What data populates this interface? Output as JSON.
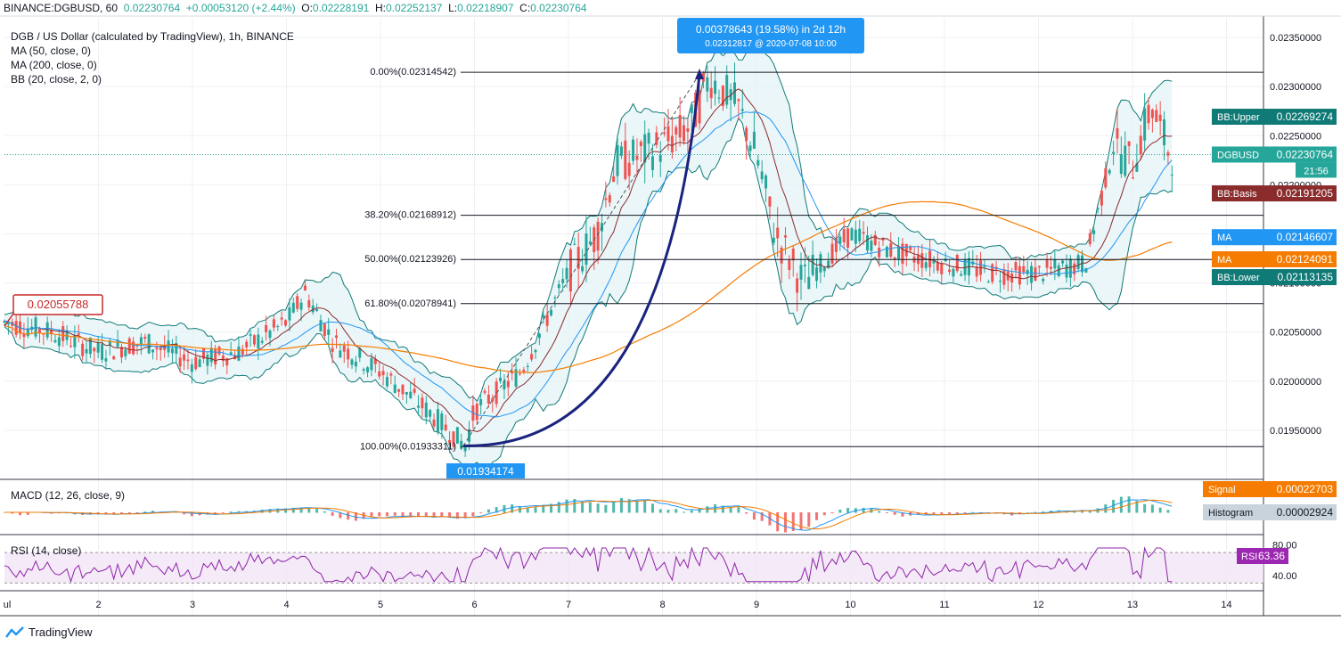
{
  "header": {
    "symbol": "BINANCE:DGBUSD, 60",
    "last": "0.02230764",
    "change": "+0.00053120 (+2.44%)",
    "o_label": "O:",
    "o": "0.02228191",
    "h_label": "H:",
    "h": "0.02252137",
    "l_label": "L:",
    "l": "0.02218907",
    "c_label": "C:",
    "c": "0.02230764"
  },
  "legend": {
    "title": "DGB / US Dollar (calculated by TradingView), 1h, BINANCE",
    "ma50": "MA (50, close, 0)",
    "ma200": "MA (200, close, 0)",
    "bb": "BB (20, close, 2, 0)"
  },
  "measure": {
    "text": "0.00378643 (19.58%) in 2d 12h",
    "sub": "0.02312817 @ 2020-07-08 10:00",
    "low_label": "0.01934174",
    "left_label": "0.02055788"
  },
  "fib_levels": [
    {
      "label": "0.00%(0.02314542)",
      "price": 0.02314542
    },
    {
      "label": "38.20%(0.02168912)",
      "price": 0.02168912
    },
    {
      "label": "50.00%(0.02123926)",
      "price": 0.02123926
    },
    {
      "label": "61.80%(0.02078941)",
      "price": 0.02078941
    },
    {
      "label": "100.00%(0.01933311)",
      "price": 0.01933311
    }
  ],
  "price_axis": {
    "ticks": [
      "0.02350000",
      "0.02300000",
      "0.02250000",
      "0.02200000",
      "0.02150000",
      "0.02100000",
      "0.02050000",
      "0.02000000",
      "0.01950000"
    ],
    "tick_values": [
      0.0235,
      0.023,
      0.0225,
      0.022,
      0.0215,
      0.021,
      0.0205,
      0.02,
      0.0195
    ],
    "range": [
      0.019,
      0.0237
    ]
  },
  "price_tags": [
    {
      "name": "BB:Upper",
      "value": "0.02269274",
      "price": 0.02269274,
      "color": "#0f7a76"
    },
    {
      "name": "DGBUSD",
      "value": "0.02230764",
      "price": 0.02230764,
      "color": "#26a69a",
      "extra": "21:56"
    },
    {
      "name": "BB:Basis",
      "value": "0.02191205",
      "price": 0.02191205,
      "color": "#8b2c2c"
    },
    {
      "name": "MA",
      "value": "0.02146607",
      "price": 0.02146607,
      "color": "#2196f3"
    },
    {
      "name": "MA",
      "value": "0.02124091",
      "price": 0.02124091,
      "color": "#f57c00"
    },
    {
      "name": "BB:Lower",
      "value": "0.02113135",
      "price": 0.02113135,
      "color": "#0f7a76"
    }
  ],
  "macd": {
    "label": "MACD (12, 26, close, 9)",
    "tags": [
      {
        "name": "Signal",
        "value": "0.00022703",
        "color": "#f57c00"
      },
      {
        "name": "Histogram",
        "value": "0.00002924",
        "color": "#c8d3dc"
      }
    ]
  },
  "rsi": {
    "label": "RSI (14, close)",
    "ticks": [
      "80.00",
      "40.00"
    ],
    "tick_values": [
      80,
      40
    ],
    "tag": {
      "name": "RSI",
      "value": "63.36",
      "color": "#9c27b0"
    }
  },
  "time_axis": {
    "labels": [
      "ul",
      "2",
      "3",
      "4",
      "5",
      "6",
      "7",
      "8",
      "9",
      "10",
      "11",
      "12",
      "13",
      "14"
    ]
  },
  "branding": {
    "name": "TradingView"
  },
  "chart_data": {
    "type": "line",
    "title": "DGB / US Dollar (calculated by TradingView), 1h, BINANCE",
    "x": [
      1,
      1.5,
      2,
      2.5,
      3,
      3.5,
      4,
      4.2,
      4.5,
      5,
      5.5,
      5.9,
      6,
      6.5,
      7,
      7.3,
      7.5,
      8,
      8.3,
      8.5,
      8.8,
      9,
      9.2,
      9.5,
      10,
      10.5,
      11,
      11.5,
      12,
      12.5,
      12.8,
      13,
      13.2,
      13.4
    ],
    "series": [
      {
        "name": "DGBUSD",
        "values": [
          0.0206,
          0.0205,
          0.0203,
          0.0204,
          0.0202,
          0.0203,
          0.0206,
          0.0209,
          0.0204,
          0.0201,
          0.0197,
          0.01934,
          0.0197,
          0.0201,
          0.0211,
          0.0215,
          0.0222,
          0.0224,
          0.0226,
          0.0231,
          0.0228,
          0.0223,
          0.0215,
          0.021,
          0.0215,
          0.0213,
          0.0212,
          0.0211,
          0.0211,
          0.0212,
          0.0224,
          0.0222,
          0.0228,
          0.02231
        ]
      }
    ],
    "ylim": [
      0.019,
      0.0237
    ]
  }
}
